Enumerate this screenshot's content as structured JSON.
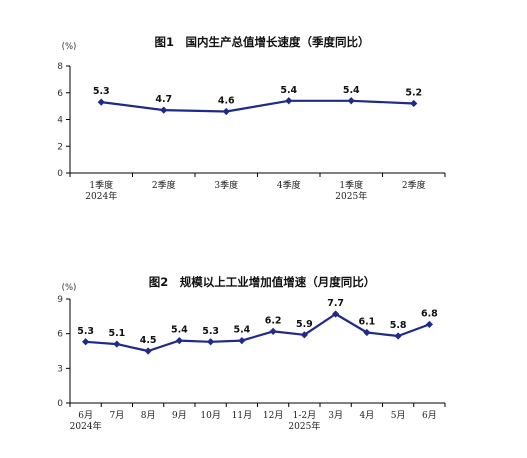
{
  "colors": {
    "line": "#1f2a8a",
    "marker": "#1f2a8a",
    "axis": "#000000"
  },
  "chart_data": [
    {
      "type": "line",
      "title": "图1　国内生产总值增长速度（季度同比）",
      "unit": "(%)",
      "ylim": [
        0,
        8
      ],
      "yticks": [
        0,
        2,
        4,
        6,
        8
      ],
      "categories": [
        "1季度",
        "2季度",
        "3季度",
        "4季度",
        "1季度",
        "2季度"
      ],
      "year_labels": [
        {
          "category_index": 0,
          "text": "2024年"
        },
        {
          "category_index": 4,
          "text": "2025年"
        }
      ],
      "series": [
        {
          "values": [
            5.3,
            4.7,
            4.6,
            5.4,
            5.4,
            5.2
          ]
        }
      ],
      "data_labels": [
        "5.3",
        "4.7",
        "4.6",
        "5.4",
        "5.4",
        "5.2"
      ],
      "grid": false
    },
    {
      "type": "line",
      "title": "图2　规模以上工业增加值增速（月度同比）",
      "unit": "(%)",
      "ylim": [
        0,
        9
      ],
      "yticks": [
        0,
        3,
        6,
        9
      ],
      "categories": [
        "6月",
        "7月",
        "8月",
        "9月",
        "10月",
        "11月",
        "12月",
        "1-2月",
        "3月",
        "4月",
        "5月",
        "6月"
      ],
      "year_labels": [
        {
          "category_index": 0,
          "text": "2024年"
        },
        {
          "category_index": 7,
          "text": "2025年"
        }
      ],
      "series": [
        {
          "values": [
            5.3,
            5.1,
            4.5,
            5.4,
            5.3,
            5.4,
            6.2,
            5.9,
            7.7,
            6.1,
            5.8,
            6.8
          ]
        }
      ],
      "data_labels": [
        "5.3",
        "5.1",
        "4.5",
        "5.4",
        "5.3",
        "5.4",
        "6.2",
        "5.9",
        "7.7",
        "6.1",
        "5.8",
        "6.8"
      ],
      "grid": false
    }
  ]
}
